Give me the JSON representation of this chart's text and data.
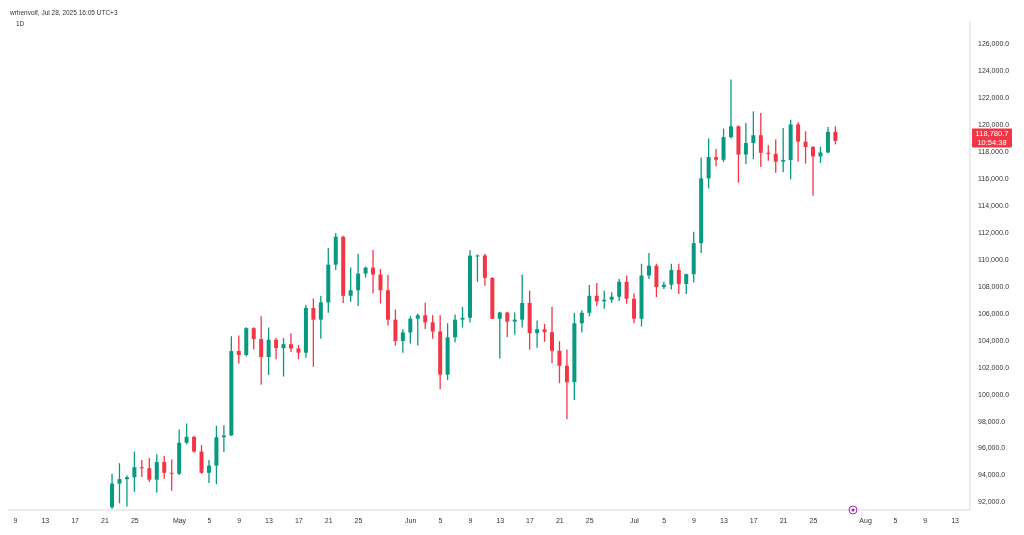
{
  "chart_data": {
    "type": "candlestick",
    "title": "1D",
    "annotations": [
      "118,780.7",
      "10:54:38",
      "wrhenvolf, Jul 28, 2025 16:05 UTC+3"
    ],
    "x": [
      "2025-04-22",
      "2025-04-23",
      "2025-04-24",
      "2025-04-25",
      "2025-04-26",
      "2025-04-27",
      "2025-04-28",
      "2025-04-29",
      "2025-04-30",
      "2025-05-01",
      "2025-05-02",
      "2025-05-03",
      "2025-05-04",
      "2025-05-05",
      "2025-05-06",
      "2025-05-07",
      "2025-05-08",
      "2025-05-09",
      "2025-05-10",
      "2025-05-11",
      "2025-05-12",
      "2025-05-13",
      "2025-05-14",
      "2025-05-15",
      "2025-05-16",
      "2025-05-17",
      "2025-05-18",
      "2025-05-19",
      "2025-05-20",
      "2025-05-21",
      "2025-05-22",
      "2025-05-23",
      "2025-05-24",
      "2025-05-25",
      "2025-05-26",
      "2025-05-27",
      "2025-05-28",
      "2025-05-29",
      "2025-05-30",
      "2025-05-31",
      "2025-06-01",
      "2025-06-02",
      "2025-06-03",
      "2025-06-04",
      "2025-06-05",
      "2025-06-06",
      "2025-06-07",
      "2025-06-08",
      "2025-06-09",
      "2025-06-10",
      "2025-06-11",
      "2025-06-12",
      "2025-06-13",
      "2025-06-14",
      "2025-06-15",
      "2025-06-16",
      "2025-06-17",
      "2025-06-18",
      "2025-06-19",
      "2025-06-20",
      "2025-06-21",
      "2025-06-22",
      "2025-06-23",
      "2025-06-24",
      "2025-06-25",
      "2025-06-26",
      "2025-06-27",
      "2025-06-28",
      "2025-06-29",
      "2025-06-30",
      "2025-07-01",
      "2025-07-02",
      "2025-07-03",
      "2025-07-04",
      "2025-07-05",
      "2025-07-06",
      "2025-07-07",
      "2025-07-08",
      "2025-07-09",
      "2025-07-10",
      "2025-07-11",
      "2025-07-12",
      "2025-07-13",
      "2025-07-14",
      "2025-07-15",
      "2025-07-16",
      "2025-07-17",
      "2025-07-18",
      "2025-07-19",
      "2025-07-20",
      "2025-07-21",
      "2025-07-22",
      "2025-07-23",
      "2025-07-24",
      "2025-07-25",
      "2025-07-26",
      "2025-07-27",
      "2025-07-28"
    ],
    "ohlc": [
      [
        91600,
        94090,
        91500,
        93360
      ],
      [
        93360,
        94870,
        91900,
        93690
      ],
      [
        93690,
        93950,
        91660,
        93830
      ],
      [
        93830,
        95740,
        92750,
        94570
      ],
      [
        94570,
        95110,
        93840,
        94500
      ],
      [
        94500,
        95250,
        93480,
        93650
      ],
      [
        93650,
        95540,
        92680,
        94960
      ],
      [
        94960,
        95400,
        93720,
        94160
      ],
      [
        94160,
        95150,
        92820,
        94090
      ],
      [
        94090,
        97370,
        94000,
        96390
      ],
      [
        96390,
        97820,
        96270,
        96830
      ],
      [
        96830,
        96900,
        95650,
        95740
      ],
      [
        95740,
        96220,
        94090,
        94160
      ],
      [
        94160,
        95110,
        93400,
        94690
      ],
      [
        94690,
        97650,
        93310,
        96800
      ],
      [
        96800,
        97680,
        95710,
        96930
      ],
      [
        96930,
        104280,
        96900,
        103190
      ],
      [
        103190,
        104350,
        102260,
        102900
      ],
      [
        102900,
        104960,
        102800,
        104890
      ],
      [
        104890,
        104960,
        103300,
        104080
      ],
      [
        104080,
        105780,
        100690,
        102750
      ],
      [
        102750,
        104940,
        101410,
        104030
      ],
      [
        104030,
        104160,
        102580,
        103410
      ],
      [
        103410,
        104160,
        101300,
        103700
      ],
      [
        103700,
        104520,
        103120,
        103380
      ],
      [
        103380,
        103650,
        102580,
        103070
      ],
      [
        103070,
        106630,
        102700,
        106390
      ],
      [
        106390,
        107090,
        102020,
        105520
      ],
      [
        105520,
        107280,
        104110,
        106800
      ],
      [
        106800,
        110830,
        106030,
        109600
      ],
      [
        109600,
        111950,
        109200,
        111670
      ],
      [
        111670,
        111750,
        106760,
        107290
      ],
      [
        107290,
        109380,
        106850,
        107700
      ],
      [
        107700,
        110400,
        106540,
        108940
      ],
      [
        108940,
        109450,
        108640,
        109380
      ],
      [
        109380,
        110690,
        107460,
        108870
      ],
      [
        108870,
        109280,
        106730,
        107700
      ],
      [
        107700,
        108840,
        105080,
        105520
      ],
      [
        105520,
        106270,
        103600,
        103940
      ],
      [
        103940,
        104810,
        103070,
        104570
      ],
      [
        104570,
        105780,
        103760,
        105590
      ],
      [
        105590,
        105980,
        103600,
        105850
      ],
      [
        105850,
        106780,
        104830,
        105320
      ],
      [
        105320,
        105850,
        104110,
        104640
      ],
      [
        104640,
        105850,
        100350,
        101440
      ],
      [
        101440,
        105250,
        101050,
        104210
      ],
      [
        104210,
        105900,
        103850,
        105520
      ],
      [
        105520,
        106470,
        104940,
        105660
      ],
      [
        105660,
        110660,
        105300,
        110270
      ],
      [
        110270,
        110350,
        108330,
        110280
      ],
      [
        110280,
        110400,
        108040,
        108620
      ],
      [
        108620,
        108670,
        105560,
        105590
      ],
      [
        105590,
        106100,
        102630,
        106050
      ],
      [
        106050,
        106100,
        104230,
        105370
      ],
      [
        105370,
        106050,
        104400,
        105520
      ],
      [
        105520,
        108870,
        104940,
        106760
      ],
      [
        106760,
        107670,
        103300,
        104520
      ],
      [
        104520,
        105450,
        103430,
        104810
      ],
      [
        104810,
        105200,
        103870,
        104590
      ],
      [
        104590,
        106470,
        102290,
        103210
      ],
      [
        103210,
        103920,
        100810,
        102100
      ],
      [
        102100,
        103300,
        98140,
        100880
      ],
      [
        100880,
        106030,
        99550,
        105250
      ],
      [
        105250,
        106220,
        104570,
        106030
      ],
      [
        106030,
        108090,
        105780,
        107290
      ],
      [
        107290,
        108230,
        106540,
        106880
      ],
      [
        106880,
        107670,
        106320,
        107000
      ],
      [
        107000,
        107560,
        106780,
        107220
      ],
      [
        107220,
        108530,
        106900,
        108330
      ],
      [
        108330,
        108790,
        106700,
        107070
      ],
      [
        107070,
        107480,
        105250,
        105590
      ],
      [
        105590,
        109670,
        105010,
        108790
      ],
      [
        108790,
        110470,
        108530,
        109520
      ],
      [
        109520,
        109670,
        107190,
        107940
      ],
      [
        107940,
        108330,
        107800,
        108110
      ],
      [
        108110,
        109670,
        107750,
        109200
      ],
      [
        109200,
        109670,
        107430,
        108160
      ],
      [
        108160,
        108950,
        107430,
        108890
      ],
      [
        108890,
        112040,
        108280,
        111200
      ],
      [
        111200,
        117550,
        110470,
        116000
      ],
      [
        116000,
        118960,
        115250,
        117580
      ],
      [
        117580,
        118180,
        116900,
        117380
      ],
      [
        117380,
        119690,
        117210,
        119060
      ],
      [
        119060,
        123330,
        118960,
        119860
      ],
      [
        119860,
        119930,
        115680,
        117770
      ],
      [
        117770,
        120100,
        117070,
        118620
      ],
      [
        118620,
        120970,
        117430,
        119200
      ],
      [
        119200,
        120850,
        116850,
        117900
      ],
      [
        117900,
        118450,
        117300,
        117820
      ],
      [
        117820,
        118880,
        116410,
        117240
      ],
      [
        117240,
        119740,
        116460,
        117360
      ],
      [
        117360,
        120340,
        115930,
        120000
      ],
      [
        120000,
        120170,
        117260,
        118720
      ],
      [
        118720,
        119500,
        117090,
        118330
      ],
      [
        118330,
        118400,
        114710,
        117630
      ],
      [
        117630,
        118350,
        117140,
        117920
      ],
      [
        117920,
        119810,
        117870,
        119450
      ],
      [
        119450,
        119860,
        118520,
        118780.7
      ]
    ],
    "colors": [
      "#089981",
      "#089981",
      "#089981",
      "#089981",
      "#f23645",
      "#f23645",
      "#089981",
      "#f23645",
      "#f23645",
      "#089981",
      "#089981",
      "#f23645",
      "#f23645",
      "#089981",
      "#089981",
      "#089981",
      "#089981",
      "#f23645",
      "#089981",
      "#f23645",
      "#f23645",
      "#089981",
      "#f23645",
      "#089981",
      "#f23645",
      "#f23645",
      "#089981",
      "#f23645",
      "#089981",
      "#089981",
      "#089981",
      "#f23645",
      "#089981",
      "#089981",
      "#089981",
      "#f23645",
      "#f23645",
      "#f23645",
      "#f23645",
      "#089981",
      "#089981",
      "#089981",
      "#f23645",
      "#f23645",
      "#f23645",
      "#089981",
      "#089981",
      "#089981",
      "#089981",
      "#089981",
      "#f23645",
      "#f23645",
      "#089981",
      "#f23645",
      "#089981",
      "#089981",
      "#f23645",
      "#089981",
      "#f23645",
      "#f23645",
      "#f23645",
      "#f23645",
      "#089981",
      "#089981",
      "#089981",
      "#f23645",
      "#089981",
      "#089981",
      "#089981",
      "#f23645",
      "#f23645",
      "#089981",
      "#089981",
      "#f23645",
      "#089981",
      "#089981",
      "#f23645",
      "#089981",
      "#089981",
      "#089981",
      "#089981",
      "#f23645",
      "#089981",
      "#089981",
      "#f23645",
      "#089981",
      "#089981",
      "#f23645",
      "#f23645",
      "#f23645",
      "#089981",
      "#089981",
      "#f23645",
      "#f23645",
      "#f23645",
      "#089981",
      "#089981",
      "#f23645"
    ],
    "xlim": [
      "2025-04-08",
      "2025-08-15"
    ],
    "xticks": [
      {
        "value": "2025-04-09",
        "label": "9"
      },
      {
        "value": "2025-04-13",
        "label": "13"
      },
      {
        "value": "2025-04-17",
        "label": "17"
      },
      {
        "value": "2025-04-21",
        "label": "21"
      },
      {
        "value": "2025-04-25",
        "label": "25"
      },
      {
        "value": "2025-05-01",
        "label": "May"
      },
      {
        "value": "2025-05-05",
        "label": "5"
      },
      {
        "value": "2025-05-09",
        "label": "9"
      },
      {
        "value": "2025-05-13",
        "label": "13"
      },
      {
        "value": "2025-05-17",
        "label": "17"
      },
      {
        "value": "2025-05-21",
        "label": "21"
      },
      {
        "value": "2025-05-25",
        "label": "25"
      },
      {
        "value": "2025-06-01",
        "label": "Jun"
      },
      {
        "value": "2025-06-05",
        "label": "5"
      },
      {
        "value": "2025-06-09",
        "label": "9"
      },
      {
        "value": "2025-06-13",
        "label": "13"
      },
      {
        "value": "2025-06-17",
        "label": "17"
      },
      {
        "value": "2025-06-21",
        "label": "21"
      },
      {
        "value": "2025-06-25",
        "label": "25"
      },
      {
        "value": "2025-07-01",
        "label": "Jul"
      },
      {
        "value": "2025-07-05",
        "label": "5"
      },
      {
        "value": "2025-07-09",
        "label": "9"
      },
      {
        "value": "2025-07-13",
        "label": "13"
      },
      {
        "value": "2025-07-17",
        "label": "17"
      },
      {
        "value": "2025-07-21",
        "label": "21"
      },
      {
        "value": "2025-07-25",
        "label": "25"
      },
      {
        "value": "2025-08-01",
        "label": "Aug"
      },
      {
        "value": "2025-08-05",
        "label": "5"
      },
      {
        "value": "2025-08-09",
        "label": "9"
      },
      {
        "value": "2025-08-13",
        "label": "13"
      }
    ],
    "ylim": [
      91400,
      127600
    ],
    "yticks": [
      {
        "value": 92000,
        "label": "92,000.0"
      },
      {
        "value": 94000,
        "label": "94,000.0"
      },
      {
        "value": 96000,
        "label": "96,000.0"
      },
      {
        "value": 98000,
        "label": "98,000.0"
      },
      {
        "value": 100000,
        "label": "100,000.0"
      },
      {
        "value": 102000,
        "label": "102,000.0"
      },
      {
        "value": 104000,
        "label": "104,000.0"
      },
      {
        "value": 106000,
        "label": "106,000.0"
      },
      {
        "value": 108000,
        "label": "108,000.0"
      },
      {
        "value": 110000,
        "label": "110,000.0"
      },
      {
        "value": 112000,
        "label": "112,000.0"
      },
      {
        "value": 114000,
        "label": "114,000.0"
      },
      {
        "value": 116000,
        "label": "116,000.0"
      },
      {
        "value": 118000,
        "label": "118,000.0"
      },
      {
        "value": 120000,
        "label": "120,000.0"
      },
      {
        "value": 122000,
        "label": "122,000.0"
      },
      {
        "value": 124000,
        "label": "124,000.0"
      },
      {
        "value": 126000,
        "label": "126,000.0"
      }
    ]
  }
}
